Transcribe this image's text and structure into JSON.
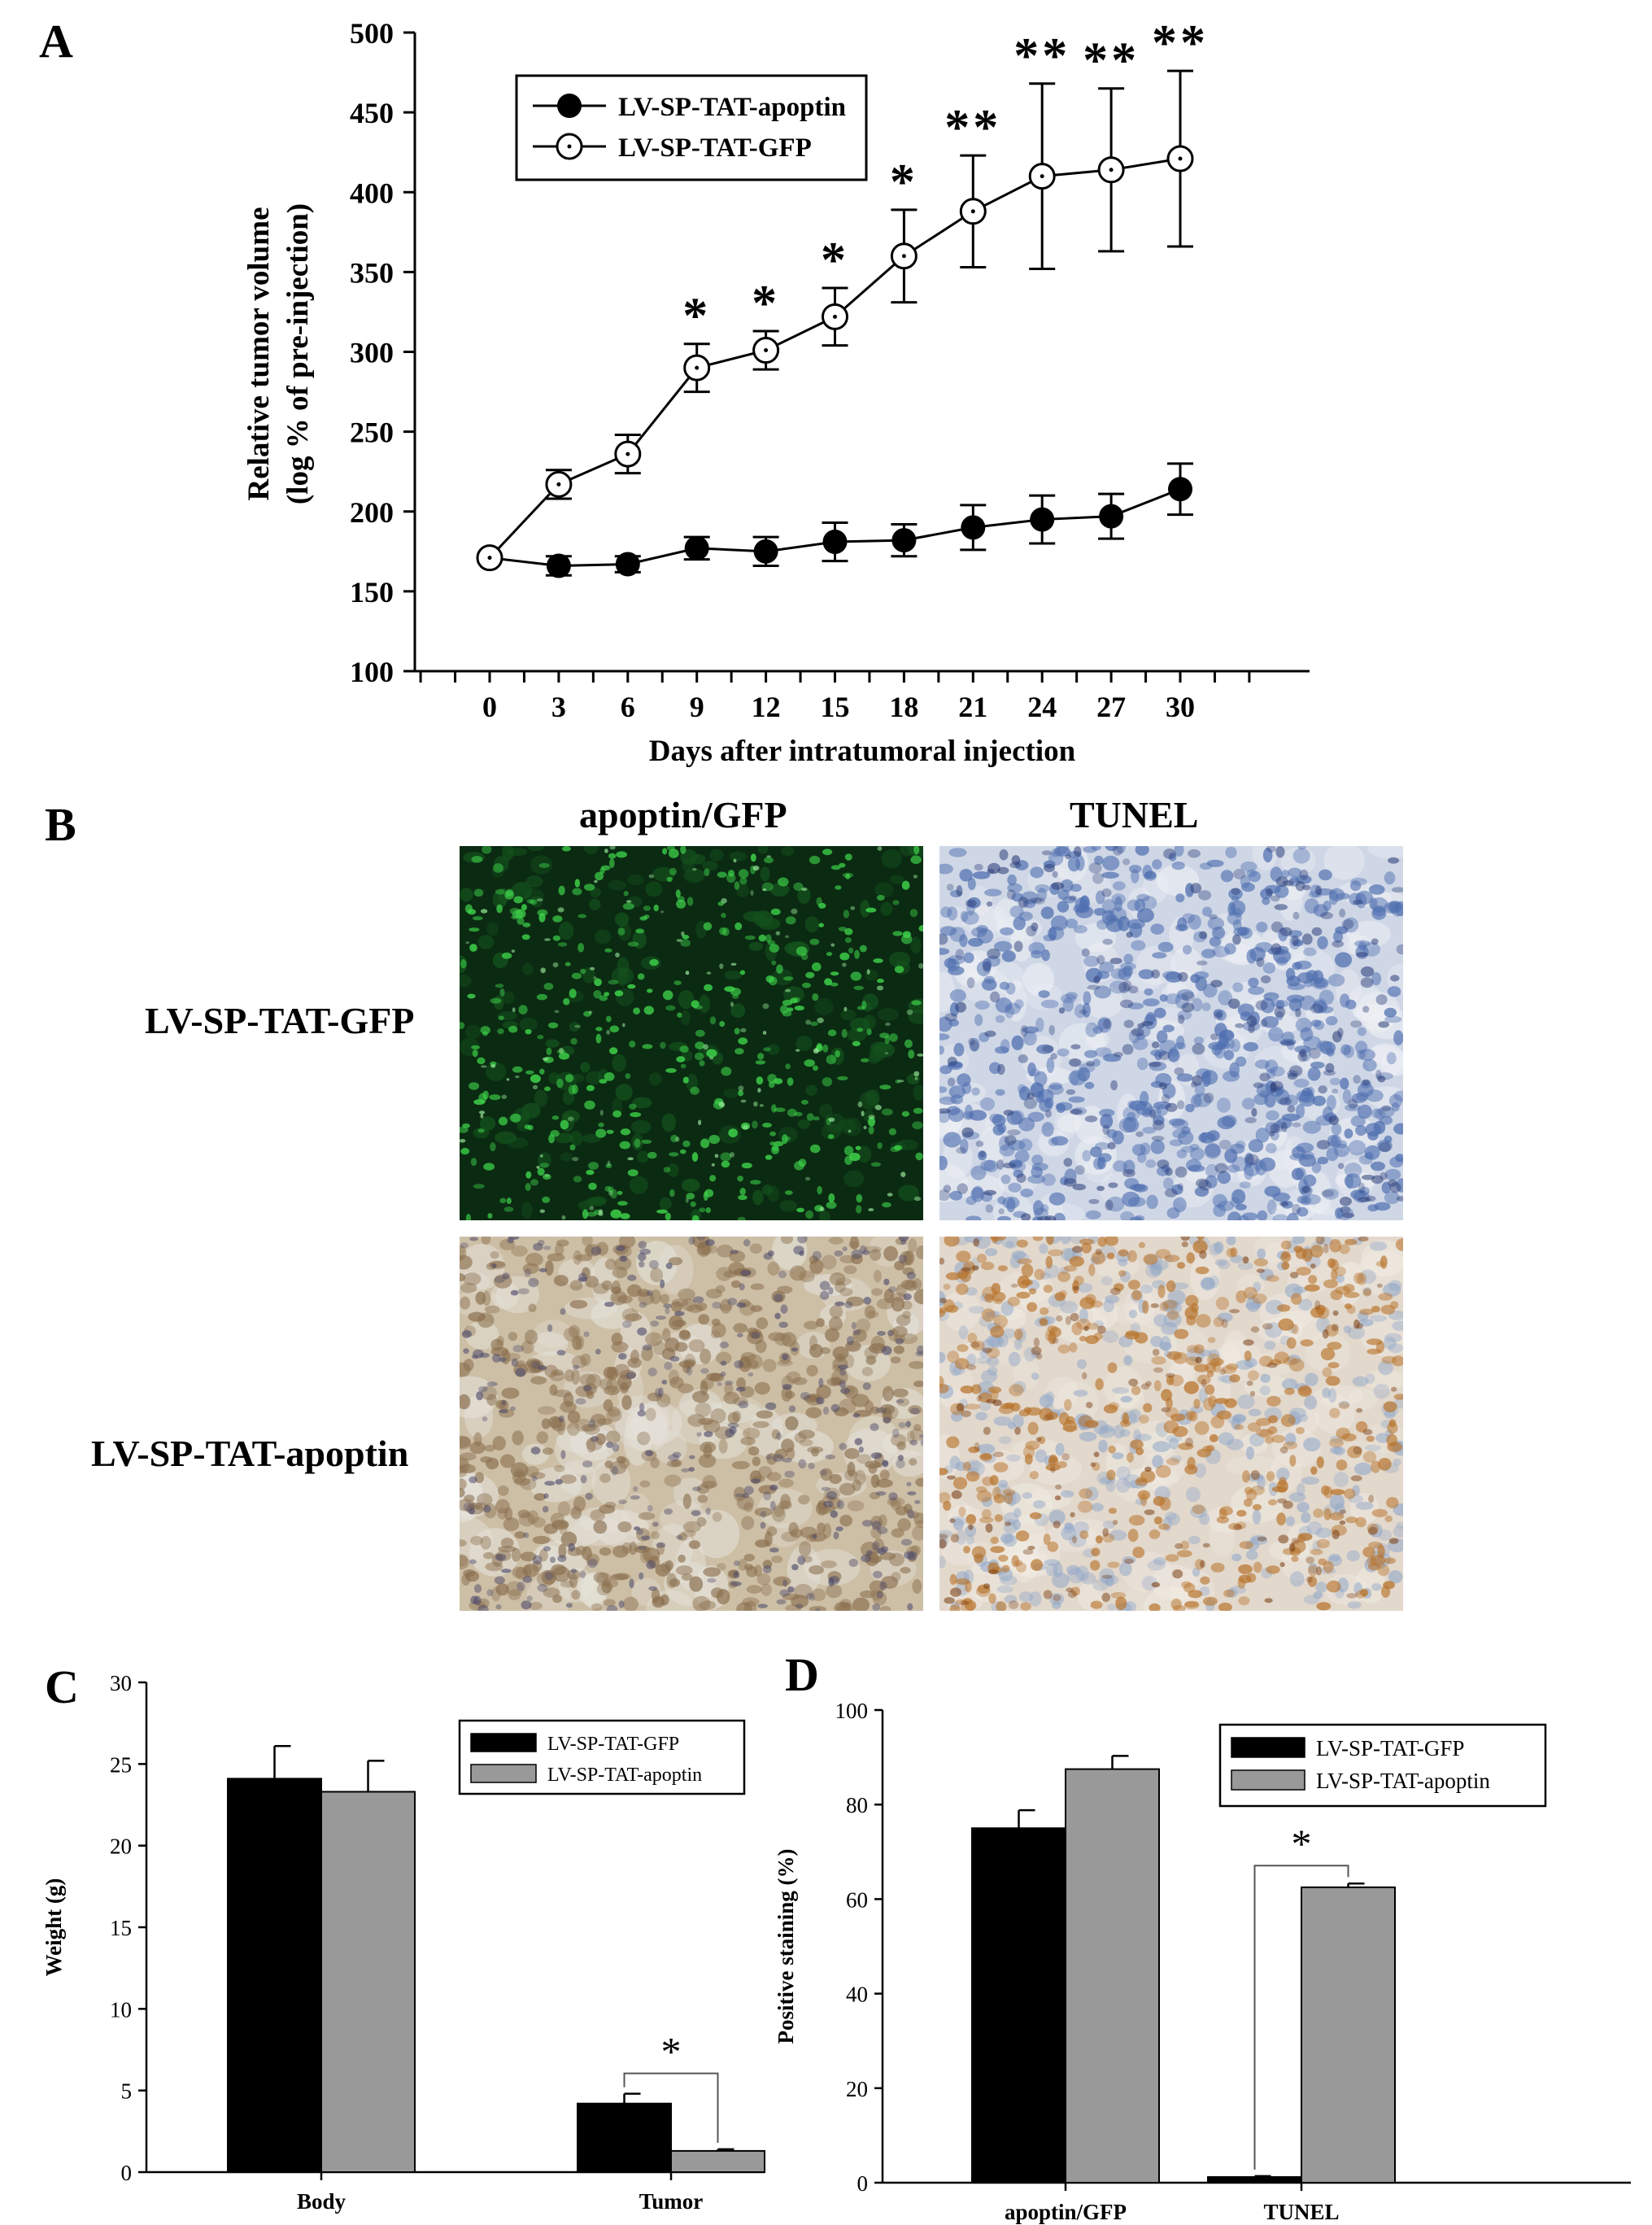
{
  "chart_data": [
    {
      "panel": "A",
      "type": "line",
      "xlabel": "Days after intratumoral injection",
      "ylabel_lines": [
        "Relative tumor volume",
        "(log % of pre-injection)"
      ],
      "x": [
        0,
        3,
        6,
        9,
        12,
        15,
        18,
        21,
        24,
        27,
        30
      ],
      "xticks": [
        "0",
        "3",
        "6",
        "9",
        "12",
        "15",
        "18",
        "21",
        "24",
        "27",
        "30"
      ],
      "yticks": [
        "100",
        "150",
        "200",
        "250",
        "300",
        "350",
        "400",
        "450",
        "500"
      ],
      "ylim": [
        100,
        500
      ],
      "legend_position": "top-left",
      "series": [
        {
          "name": "LV-SP-TAT-apoptin",
          "marker": "filled-circle",
          "values": [
            171,
            166,
            167,
            177,
            175,
            181,
            182,
            190,
            195,
            197,
            214
          ],
          "errors": [
            0,
            6,
            5,
            7,
            9,
            12,
            10,
            14,
            15,
            14,
            16
          ]
        },
        {
          "name": "LV-SP-TAT-GFP",
          "marker": "open-circle-dot",
          "values": [
            171,
            217,
            236,
            290,
            301,
            322,
            360,
            388,
            410,
            414,
            421
          ],
          "errors": [
            0,
            9,
            12,
            15,
            12,
            18,
            29,
            35,
            58,
            51,
            55
          ]
        }
      ],
      "annotations": [
        "",
        "",
        "",
        "*",
        "*",
        "*",
        "*",
        "**",
        "**",
        "**",
        "**"
      ]
    },
    {
      "panel": "C",
      "type": "bar",
      "ylabel": "Weight (g)",
      "categories": [
        "Body",
        "Tumor"
      ],
      "ylim": [
        0,
        30
      ],
      "yticks": [
        "0",
        "5",
        "10",
        "15",
        "20",
        "25",
        "30"
      ],
      "legend_position": "top-right",
      "series": [
        {
          "name": "LV-SP-TAT-GFP",
          "color": "#000000",
          "values": [
            24.1,
            4.2
          ],
          "errors": [
            2.0,
            0.6
          ]
        },
        {
          "name": "LV-SP-TAT-apoptin",
          "color": "#999999",
          "values": [
            23.3,
            1.3
          ],
          "errors": [
            1.9,
            0.1
          ]
        }
      ],
      "significance": "*"
    },
    {
      "panel": "D",
      "type": "bar",
      "ylabel": "Positive staining (%)",
      "categories": [
        "apoptin/GFP",
        "TUNEL"
      ],
      "ylim": [
        0,
        100
      ],
      "yticks": [
        "0",
        "20",
        "40",
        "60",
        "80",
        "100"
      ],
      "legend_position": "top-right",
      "series": [
        {
          "name": "LV-SP-TAT-GFP",
          "color": "#000000",
          "values": [
            75.0,
            1.2
          ],
          "errors": [
            3.8,
            0.2
          ]
        },
        {
          "name": "LV-SP-TAT-apoptin",
          "color": "#999999",
          "values": [
            87.5,
            62.5
          ],
          "errors": [
            2.8,
            0.8
          ]
        }
      ],
      "significance": "*"
    }
  ],
  "panel_letters": {
    "a": "A",
    "b": "B",
    "c": "C",
    "d": "D"
  },
  "panel_b": {
    "column_labels": [
      "apoptin/GFP",
      "TUNEL"
    ],
    "row_labels": [
      "LV-SP-TAT-GFP",
      "LV-SP-TAT-apoptin"
    ]
  },
  "colors": {
    "gfp_bar": "#000000",
    "apoptin_bar": "#999999",
    "fluorescence_bg": "#0b2a12",
    "fluorescence_spot": "#3ed44a",
    "hematoxylin": "#4f6fb0",
    "dab": "#b8742c"
  }
}
